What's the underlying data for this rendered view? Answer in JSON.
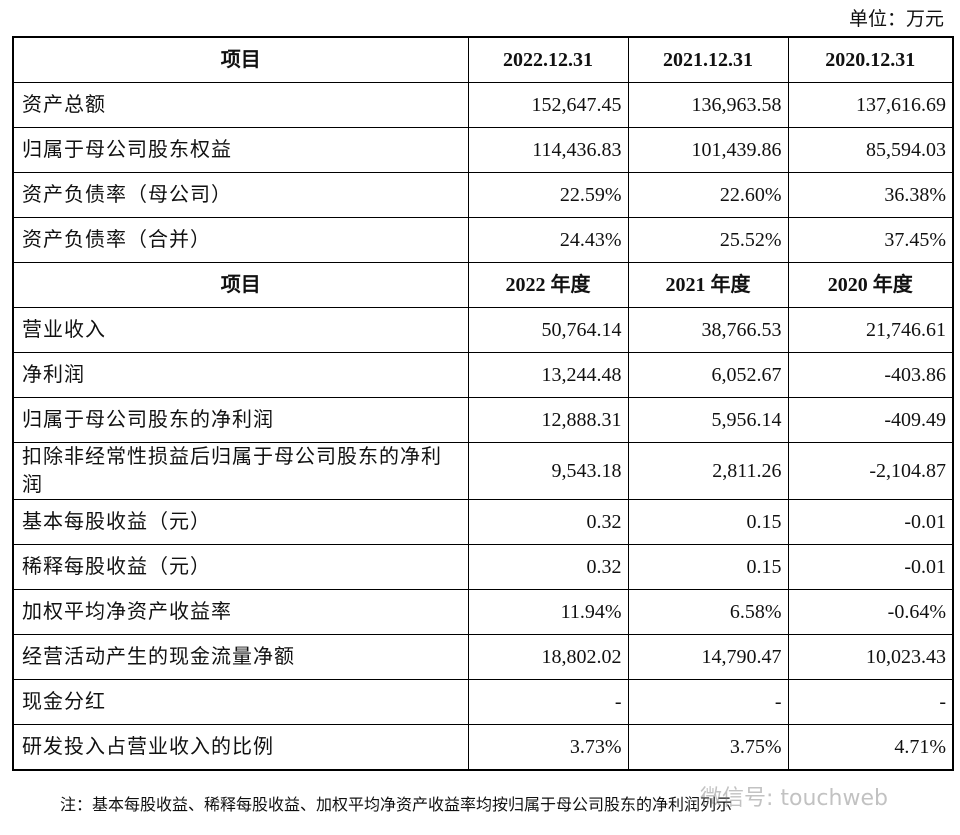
{
  "unit": "单位：万元",
  "table": {
    "sections": [
      {
        "header": [
          "项目",
          "2022.12.31",
          "2021.12.31",
          "2020.12.31"
        ],
        "rows": [
          [
            "资产总额",
            "152,647.45",
            "136,963.58",
            "137,616.69"
          ],
          [
            "归属于母公司股东权益",
            "114,436.83",
            "101,439.86",
            "85,594.03"
          ],
          [
            "资产负债率（母公司）",
            "22.59%",
            "22.60%",
            "36.38%"
          ],
          [
            "资产负债率（合并）",
            "24.43%",
            "25.52%",
            "37.45%"
          ]
        ]
      },
      {
        "header": [
          "项目",
          "2022 年度",
          "2021 年度",
          "2020 年度"
        ],
        "rows": [
          [
            "营业收入",
            "50,764.14",
            "38,766.53",
            "21,746.61"
          ],
          [
            "净利润",
            "13,244.48",
            "6,052.67",
            "-403.86"
          ],
          [
            "归属于母公司股东的净利润",
            "12,888.31",
            "5,956.14",
            "-409.49"
          ],
          [
            "扣除非经常性损益后归属于母公司股东的净利润",
            "9,543.18",
            "2,811.26",
            "-2,104.87"
          ],
          [
            "基本每股收益（元）",
            "0.32",
            "0.15",
            "-0.01"
          ],
          [
            "稀释每股收益（元）",
            "0.32",
            "0.15",
            "-0.01"
          ],
          [
            "加权平均净资产收益率",
            "11.94%",
            "6.58%",
            "-0.64%"
          ],
          [
            "经营活动产生的现金流量净额",
            "18,802.02",
            "14,790.47",
            "10,023.43"
          ],
          [
            "现金分红",
            "-",
            "-",
            "-"
          ],
          [
            "研发投入占营业收入的比例",
            "3.73%",
            "3.75%",
            "4.71%"
          ]
        ]
      }
    ]
  },
  "note": "注：基本每股收益、稀释每股收益、加权平均净资产收益率均按归属于母公司股东的净利润列示",
  "watermark": "微信号: touchweb"
}
